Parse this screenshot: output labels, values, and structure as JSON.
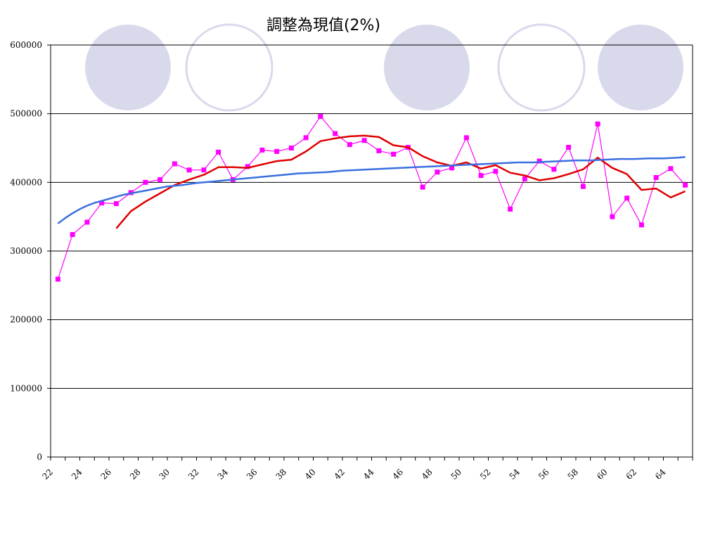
{
  "chart_data": {
    "type": "line",
    "title": "調整為現值(2%)",
    "xlabel": "",
    "ylabel": "",
    "xlim": [
      22,
      66
    ],
    "ylim": [
      0,
      600000
    ],
    "x_ticks": [
      22,
      24,
      26,
      28,
      30,
      32,
      34,
      36,
      38,
      40,
      42,
      44,
      46,
      48,
      50,
      52,
      54,
      56,
      58,
      60,
      62,
      64
    ],
    "y_ticks": [
      0,
      100000,
      200000,
      300000,
      400000,
      500000,
      600000
    ],
    "grid": "horizontal",
    "colors": {
      "background_circle": "#d9d9ec",
      "background_circle_outline": "#d9d9ec"
    },
    "series": [
      {
        "color": "#ff00ff",
        "marker": "square",
        "x": [
          22.5,
          23.5,
          24.5,
          25.5,
          26.5,
          27.5,
          28.5,
          29.5,
          30.5,
          31.5,
          32.5,
          33.5,
          34.5,
          35.5,
          36.5,
          37.5,
          38.5,
          39.5,
          40.5,
          41.5,
          42.5,
          43.5,
          44.5,
          45.5,
          46.5,
          47.5,
          48.5,
          49.5,
          50.5,
          51.5,
          52.5,
          53.5,
          54.5,
          55.5,
          56.5,
          57.5,
          58.5,
          59.5,
          60.5,
          61.5,
          62.5,
          63.5,
          64.5,
          65.5
        ],
        "y": [
          259000,
          324000,
          342000,
          370000,
          369000,
          385000,
          400000,
          404000,
          427000,
          418000,
          418000,
          444000,
          404000,
          423000,
          447000,
          445000,
          450000,
          465000,
          496000,
          471000,
          455000,
          461000,
          446000,
          441000,
          451000,
          393000,
          415000,
          421000,
          465000,
          410000,
          416000,
          361000,
          405000,
          431000,
          419000,
          451000,
          394000,
          485000,
          350000,
          377000,
          338000,
          407000,
          420000,
          396000
        ]
      },
      {
        "color": "#e00000",
        "marker": "none",
        "x": [
          26.5,
          27.5,
          28.5,
          29.5,
          30.5,
          31.5,
          32.5,
          33.5,
          34.5,
          35.5,
          36.5,
          37.5,
          38.5,
          39.5,
          40.5,
          41.5,
          42.5,
          43.5,
          44.5,
          45.5,
          46.5,
          47.5,
          48.5,
          49.5,
          50.5,
          51.5,
          52.5,
          53.5,
          54.5,
          55.5,
          56.5,
          57.5,
          58.5,
          59.5,
          60.5,
          61.5,
          62.5,
          63.5,
          64.5,
          65.5
        ],
        "y": [
          333000,
          358000,
          372000,
          384000,
          396000,
          404000,
          411000,
          422000,
          422000,
          421000,
          426000,
          431000,
          433000,
          445000,
          460000,
          464000,
          467000,
          468000,
          466000,
          454000,
          451000,
          438000,
          429000,
          424000,
          429000,
          420000,
          425000,
          414000,
          410000,
          403000,
          406000,
          412000,
          419000,
          436000,
          421000,
          412000,
          389000,
          391000,
          378000,
          387000
        ]
      },
      {
        "color": "#3a6fe0",
        "marker": "none",
        "x": [
          22.5,
          23.0,
          23.5,
          24.0,
          24.5,
          25.0,
          25.5,
          26.0,
          26.5,
          27.0,
          27.5,
          28.0,
          28.5,
          29.0,
          29.5,
          30.0,
          31.0,
          32.0,
          33.0,
          34.0,
          35.0,
          36.0,
          37.0,
          38.0,
          39.0,
          40.0,
          41.0,
          42.0,
          43.0,
          44.0,
          45.0,
          46.0,
          47.0,
          48.0,
          49.0,
          50.0,
          51.0,
          52.0,
          53.0,
          54.0,
          55.0,
          56.0,
          57.0,
          58.0,
          59.0,
          60.0,
          61.0,
          62.0,
          63.0,
          64.0,
          65.0,
          65.5
        ],
        "y": [
          340000,
          348000,
          355000,
          361000,
          366000,
          370000,
          373000,
          376000,
          379000,
          382000,
          384000,
          386000,
          388000,
          390000,
          392000,
          394000,
          396000,
          399000,
          401000,
          403000,
          405000,
          407000,
          409000,
          411000,
          413000,
          414000,
          415000,
          417000,
          418000,
          419000,
          420000,
          421000,
          422000,
          423000,
          424000,
          425000,
          426000,
          427000,
          428000,
          429000,
          429000,
          430000,
          431000,
          432000,
          432000,
          433000,
          434000,
          434000,
          435000,
          435000,
          436000,
          437000
        ]
      }
    ]
  }
}
